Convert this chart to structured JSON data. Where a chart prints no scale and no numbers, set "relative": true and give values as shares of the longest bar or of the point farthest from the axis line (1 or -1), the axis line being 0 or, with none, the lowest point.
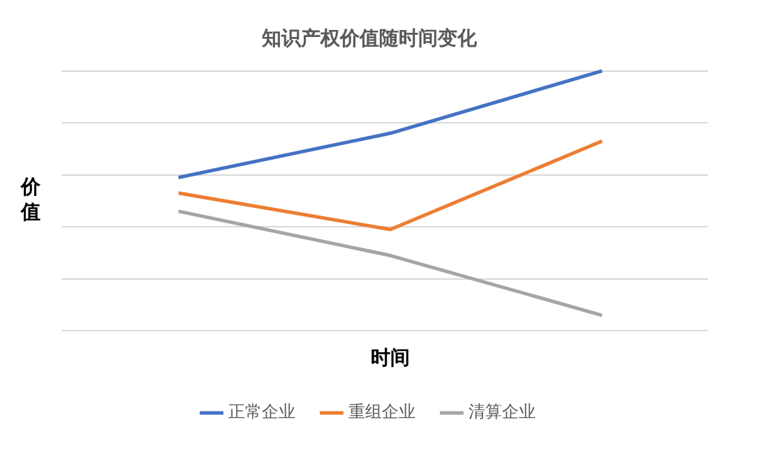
{
  "chart_data": {
    "type": "line",
    "title": "知识产权价值随时间变化",
    "xlabel": "时间",
    "ylabel": "价值",
    "relative": true,
    "categories": [
      null,
      null,
      null
    ],
    "series": [
      {
        "name": "正常企业",
        "color": "#4472c4",
        "values": [
          0.59,
          0.76,
          1
        ]
      },
      {
        "name": "重组企业",
        "color": "#ed7d31",
        "values": [
          0.53,
          0.39,
          0.73
        ]
      },
      {
        "name": "清算企业",
        "color": "#a5a5a5",
        "values": [
          0.46,
          0.29,
          0.06
        ]
      }
    ],
    "grid": "y",
    "legend": "bottom",
    "marker": "none",
    "line_style": "solid"
  }
}
